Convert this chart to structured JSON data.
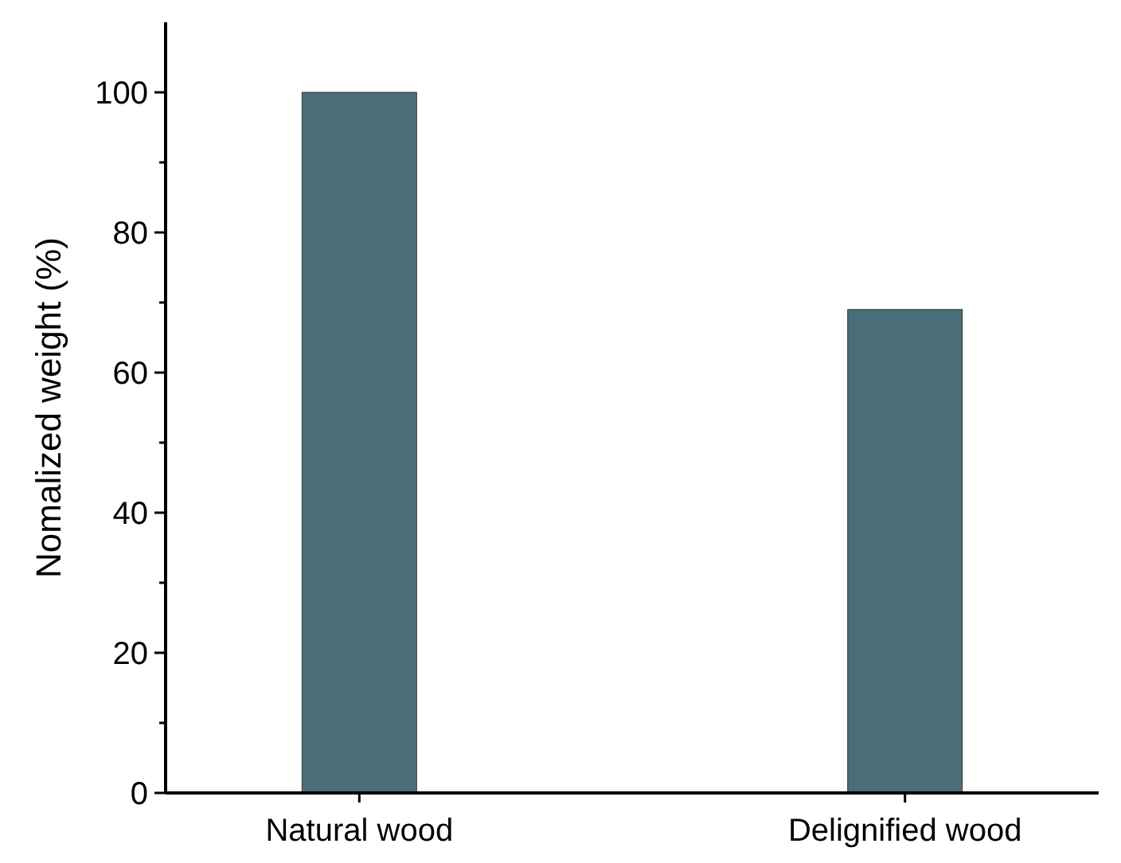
{
  "chart_data": {
    "type": "bar",
    "ylabel": "Nomalized weight (%)",
    "categories": [
      "Natural wood",
      "Delignified wood"
    ],
    "values": [
      100,
      69
    ],
    "color": "#4a6e78",
    "ylim": [
      0,
      110
    ],
    "yticks": [
      0,
      {
        "value": 10,
        "label": null
      },
      20,
      {
        "value": 30,
        "label": null
      },
      40,
      {
        "value": 50,
        "label": null
      },
      60,
      {
        "value": 70,
        "label": null
      },
      80,
      {
        "value": 90,
        "label": null
      },
      100
    ],
    "grid": false
  }
}
